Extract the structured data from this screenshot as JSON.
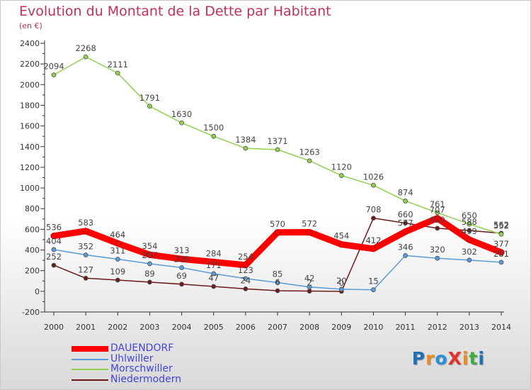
{
  "header": {
    "title": "Evolution du Montant de la Dette par Habitant",
    "subtitle": "(en €)"
  },
  "brand": {
    "text": "ProXiti",
    "colors": [
      "#1f6fb2",
      "#f08a1c",
      "#2b8fd6",
      "#e2322b",
      "#f08a1c",
      "#3cae3c",
      "#1f6fb2"
    ]
  },
  "chart_data": {
    "type": "line",
    "x": [
      "2000",
      "2001",
      "2002",
      "2003",
      "2004",
      "2005",
      "2006",
      "2007",
      "2008",
      "2009",
      "2010",
      "2011",
      "2012",
      "2013",
      "2014"
    ],
    "ylim": [
      -200,
      2400
    ],
    "yticks": [
      -200,
      0,
      200,
      400,
      600,
      800,
      1000,
      1200,
      1400,
      1600,
      1800,
      2000,
      2200,
      2400
    ],
    "grid": false,
    "legend_position": "bottom-left",
    "series": [
      {
        "name": "DAUENDORF",
        "color": "#ff0000",
        "width": 9,
        "values": [
          536,
          583,
          464,
          354,
          313,
          284,
          254,
          570,
          572,
          454,
          412,
          577,
          707,
          499,
          377
        ]
      },
      {
        "name": "Uhlwiller",
        "color": "#5b9bd5",
        "width": 1.5,
        "values": [
          404,
          352,
          311,
          267,
          229,
          171,
          123,
          85,
          42,
          20,
          15,
          346,
          320,
          302,
          281
        ]
      },
      {
        "name": "Morschwiller",
        "color": "#8fd14f",
        "width": 1.5,
        "values": [
          2094,
          2268,
          2111,
          1791,
          1630,
          1500,
          1384,
          1371,
          1263,
          1120,
          1026,
          874,
          761,
          650,
          552
        ]
      },
      {
        "name": "Niedermodern",
        "color": "#6b1a1a",
        "width": 1.5,
        "values": [
          252,
          127,
          109,
          89,
          69,
          47,
          24,
          6,
          2,
          0,
          708,
          660,
          610,
          588,
          562
        ]
      }
    ]
  },
  "legend": [
    {
      "label": "DAUENDORF"
    },
    {
      "label": "Uhlwiller"
    },
    {
      "label": "Morschwiller"
    },
    {
      "label": "Niedermodern"
    }
  ]
}
